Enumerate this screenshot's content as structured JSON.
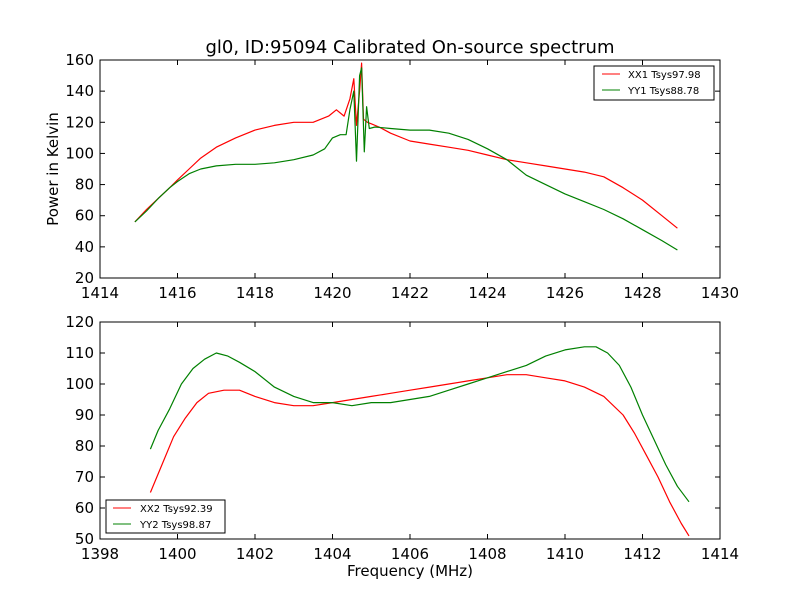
{
  "chart_data": [
    {
      "type": "line",
      "title": "gl0, ID:95094 Calibrated On-source spectrum",
      "xlabel": "",
      "ylabel": "Power in Kelvin",
      "xlim": [
        1414,
        1430
      ],
      "ylim": [
        20,
        160
      ],
      "xticks": [
        1414,
        1416,
        1418,
        1420,
        1422,
        1424,
        1426,
        1428,
        1430
      ],
      "yticks": [
        20,
        40,
        60,
        80,
        100,
        120,
        140,
        160
      ],
      "legend_position": "top-right",
      "grid": false,
      "series": [
        {
          "name": "XX1 Tsys97.98",
          "color": "#ff0000",
          "x": [
            1414.9,
            1415.2,
            1415.5,
            1415.8,
            1416.0,
            1416.3,
            1416.6,
            1417.0,
            1417.5,
            1418.0,
            1418.5,
            1419.0,
            1419.5,
            1419.9,
            1420.1,
            1420.3,
            1420.45,
            1420.55,
            1420.62,
            1420.7,
            1420.75,
            1420.8,
            1420.9,
            1421.0,
            1421.2,
            1421.5,
            1422.0,
            1422.5,
            1423.0,
            1423.5,
            1424.0,
            1424.5,
            1425.0,
            1425.5,
            1426.0,
            1426.5,
            1427.0,
            1427.5,
            1428.0,
            1428.5,
            1428.9
          ],
          "y": [
            56,
            64,
            71,
            78,
            83,
            90,
            97,
            104,
            110,
            115,
            118,
            120,
            120,
            124,
            128,
            124,
            135,
            148,
            118,
            140,
            158,
            122,
            120,
            119,
            117,
            113,
            108,
            106,
            104,
            102,
            99,
            96,
            94,
            92,
            90,
            88,
            85,
            78,
            70,
            60,
            52
          ]
        },
        {
          "name": "YY1 Tsys88.78",
          "color": "#008000",
          "x": [
            1414.9,
            1415.2,
            1415.5,
            1415.8,
            1416.0,
            1416.3,
            1416.6,
            1417.0,
            1417.5,
            1418.0,
            1418.5,
            1419.0,
            1419.5,
            1419.8,
            1420.0,
            1420.2,
            1420.35,
            1420.45,
            1420.55,
            1420.62,
            1420.7,
            1420.75,
            1420.82,
            1420.88,
            1420.95,
            1421.1,
            1421.5,
            1422.0,
            1422.5,
            1423.0,
            1423.5,
            1424.0,
            1424.5,
            1425.0,
            1425.5,
            1426.0,
            1426.5,
            1427.0,
            1427.5,
            1428.0,
            1428.5,
            1428.9
          ],
          "y": [
            56,
            63,
            71,
            78,
            82,
            87,
            90,
            92,
            93,
            93,
            94,
            96,
            99,
            103,
            110,
            112,
            112,
            128,
            140,
            95,
            150,
            155,
            101,
            130,
            116,
            117,
            116,
            115,
            115,
            113,
            109,
            103,
            96,
            86,
            80,
            74,
            69,
            64,
            58,
            51,
            44,
            38
          ]
        }
      ]
    },
    {
      "type": "line",
      "title": "",
      "xlabel": "Frequency (MHz)",
      "ylabel": "",
      "xlim": [
        1398,
        1414
      ],
      "ylim": [
        50,
        120
      ],
      "xticks": [
        1398,
        1400,
        1402,
        1404,
        1406,
        1408,
        1410,
        1412,
        1414
      ],
      "yticks": [
        50,
        60,
        70,
        80,
        90,
        100,
        110,
        120
      ],
      "legend_position": "bottom-left",
      "grid": false,
      "series": [
        {
          "name": "XX2 Tsys92.39",
          "color": "#ff0000",
          "x": [
            1399.3,
            1399.6,
            1399.9,
            1400.2,
            1400.5,
            1400.8,
            1401.2,
            1401.6,
            1402.0,
            1402.5,
            1403.0,
            1403.5,
            1404.0,
            1404.5,
            1405.0,
            1405.5,
            1406.0,
            1406.5,
            1407.0,
            1407.5,
            1408.0,
            1408.5,
            1409.0,
            1409.5,
            1410.0,
            1410.5,
            1411.0,
            1411.5,
            1411.8,
            1412.1,
            1412.4,
            1412.7,
            1413.0,
            1413.2
          ],
          "y": [
            65,
            74,
            83,
            89,
            94,
            97,
            98,
            98,
            96,
            94,
            93,
            93,
            94,
            95,
            96,
            97,
            98,
            99,
            100,
            101,
            102,
            103,
            103,
            102,
            101,
            99,
            96,
            90,
            84,
            77,
            70,
            62,
            55,
            51
          ]
        },
        {
          "name": "YY2 Tsys98.87",
          "color": "#008000",
          "x": [
            1399.3,
            1399.5,
            1399.8,
            1400.1,
            1400.4,
            1400.7,
            1401.0,
            1401.3,
            1401.6,
            1402.0,
            1402.5,
            1403.0,
            1403.5,
            1404.0,
            1404.5,
            1405.0,
            1405.5,
            1406.0,
            1406.5,
            1407.0,
            1407.5,
            1408.0,
            1408.5,
            1409.0,
            1409.5,
            1410.0,
            1410.5,
            1410.8,
            1411.1,
            1411.4,
            1411.7,
            1412.0,
            1412.3,
            1412.6,
            1412.9,
            1413.2
          ],
          "y": [
            79,
            85,
            92,
            100,
            105,
            108,
            110,
            109,
            107,
            104,
            99,
            96,
            94,
            94,
            93,
            94,
            94,
            95,
            96,
            98,
            100,
            102,
            104,
            106,
            109,
            111,
            112,
            112,
            110,
            106,
            99,
            90,
            82,
            74,
            67,
            62
          ]
        }
      ]
    }
  ]
}
